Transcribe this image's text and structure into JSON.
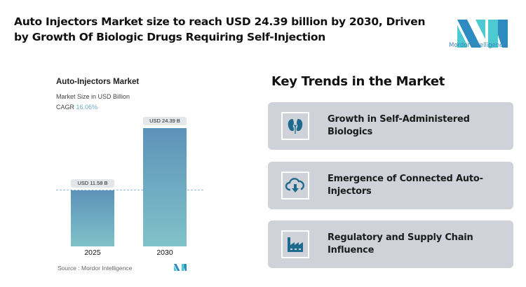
{
  "header": {
    "title": "Auto Injectors Market size to reach USD 24.39 billion by 2030, Driven by Growth Of Biologic Drugs Requiring Self-Injection",
    "logo_text": "Mordor Intelligence"
  },
  "chart_data": {
    "type": "bar",
    "title": "Auto-Injectors Market",
    "subtitle": "Market Size in USD Billion",
    "cagr_label": "CAGR",
    "cagr_value": "16.06%",
    "categories": [
      "2025",
      "2030"
    ],
    "values": [
      11.58,
      24.39
    ],
    "data_labels": [
      "USD 11.58 B",
      "USD 24.39 B"
    ],
    "ylim": [
      0,
      24.39
    ],
    "grid": false,
    "colors": {
      "bar_top": "#5d93b9",
      "bar_bottom": "#80c2c9",
      "cagr": "#6aaac4"
    },
    "source": "Source :  Mordor Intelligence"
  },
  "trends": {
    "title": "Key Trends in the Market",
    "items": [
      {
        "label": "Growth in Self-Administered Biologics",
        "icon": "kidneys-icon"
      },
      {
        "label": "Emergence of Connected Auto-Injectors",
        "icon": "cloud-download-icon"
      },
      {
        "label": "Regulatory and Supply Chain Influence",
        "icon": "factory-icon"
      }
    ],
    "icon_color": "#1e6a8d",
    "card_bg": "#cfd3d9"
  }
}
